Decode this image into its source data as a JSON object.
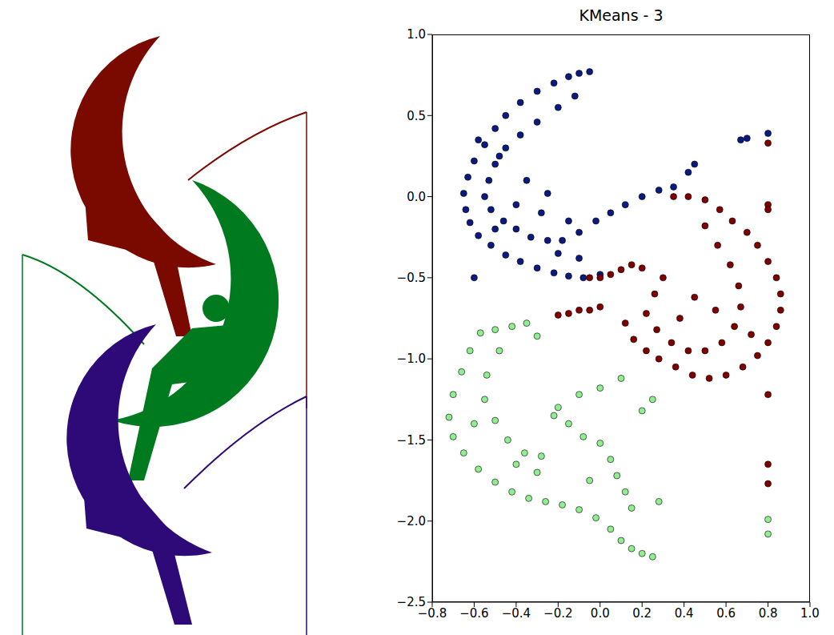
{
  "chart_data": {
    "type": "scatter",
    "title": "KMeans - 3",
    "xlim": [
      -0.8,
      1.0
    ],
    "xticks": [
      {
        "value": -0.8,
        "label": "−0.8"
      },
      {
        "value": -0.6,
        "label": "−0.6"
      },
      {
        "value": -0.4,
        "label": "−0.4"
      },
      {
        "value": -0.2,
        "label": "−0.2"
      },
      {
        "value": 0.0,
        "label": "0.0"
      },
      {
        "value": 0.2,
        "label": "0.2"
      },
      {
        "value": 0.4,
        "label": "0.4"
      },
      {
        "value": 0.6,
        "label": "0.6"
      },
      {
        "value": 0.8,
        "label": "0.8"
      },
      {
        "value": 1.0,
        "label": "1.0"
      }
    ],
    "ylim": [
      -2.5,
      1.0
    ],
    "yticks": [
      {
        "value": -2.5,
        "label": "−2.5"
      },
      {
        "value": -2.0,
        "label": "−2.0"
      },
      {
        "value": -1.5,
        "label": "−1.5"
      },
      {
        "value": -1.0,
        "label": "−1.0"
      },
      {
        "value": -0.5,
        "label": "−0.5"
      },
      {
        "value": 0.0,
        "label": "0.0"
      },
      {
        "value": 0.5,
        "label": "0.5"
      },
      {
        "value": 1.0,
        "label": "1.0"
      }
    ],
    "grid": false,
    "marker": "circle",
    "series": [
      {
        "color": "#0a1a80",
        "x": [
          -0.05,
          -0.1,
          -0.15,
          -0.22,
          -0.3,
          -0.38,
          -0.45,
          -0.5,
          -0.55,
          -0.6,
          -0.63,
          -0.65,
          -0.64,
          -0.62,
          -0.58,
          -0.52,
          -0.45,
          -0.38,
          -0.3,
          -0.22,
          -0.15,
          -0.08,
          0.0,
          -0.12,
          -0.2,
          -0.3,
          -0.38,
          -0.45,
          -0.5,
          -0.53,
          -0.55,
          -0.52,
          -0.46,
          -0.4,
          -0.33,
          -0.25,
          -0.18,
          -0.1,
          -0.02,
          0.05,
          0.12,
          0.2,
          0.28,
          0.35,
          0.42,
          0.45,
          0.67,
          0.7,
          0.8,
          -0.6,
          -0.35,
          -0.25,
          -0.4,
          -0.5,
          -0.2,
          -0.1,
          -0.58,
          -0.48,
          -0.28,
          -0.15
        ],
        "values": [
          0.77,
          0.76,
          0.74,
          0.7,
          0.65,
          0.58,
          0.5,
          0.42,
          0.32,
          0.22,
          0.12,
          0.02,
          -0.08,
          -0.16,
          -0.24,
          -0.3,
          -0.36,
          -0.4,
          -0.44,
          -0.47,
          -0.49,
          -0.5,
          -0.48,
          0.62,
          0.55,
          0.46,
          0.38,
          0.3,
          0.2,
          0.1,
          0.0,
          -0.08,
          -0.15,
          -0.2,
          -0.25,
          -0.27,
          -0.27,
          -0.22,
          -0.15,
          -0.1,
          -0.05,
          0.0,
          0.04,
          0.06,
          0.15,
          0.2,
          0.35,
          0.36,
          0.39,
          -0.5,
          0.1,
          0.02,
          -0.05,
          -0.2,
          -0.35,
          -0.38,
          0.35,
          0.25,
          -0.1,
          -0.15
        ]
      },
      {
        "color": "#800000",
        "x": [
          0.35,
          0.42,
          0.5,
          0.57,
          0.63,
          0.7,
          0.75,
          0.8,
          0.84,
          0.86,
          0.86,
          0.84,
          0.8,
          0.75,
          0.68,
          0.6,
          0.52,
          0.44,
          0.36,
          0.28,
          0.22,
          0.16,
          0.12,
          0.5,
          0.56,
          0.62,
          0.66,
          0.67,
          0.64,
          0.58,
          0.5,
          0.42,
          0.34,
          0.27,
          0.22,
          0.26,
          0.3,
          0.0,
          0.05,
          0.1,
          0.15,
          0.2,
          -0.05,
          -0.2,
          -0.15,
          -0.1,
          -0.05,
          0.0,
          0.8,
          0.8,
          0.8,
          0.8,
          0.8,
          0.8,
          0.45,
          0.72,
          0.55,
          0.38
        ],
        "values": [
          0.0,
          0.0,
          -0.02,
          -0.08,
          -0.15,
          -0.22,
          -0.3,
          -0.4,
          -0.5,
          -0.6,
          -0.7,
          -0.8,
          -0.9,
          -0.98,
          -1.05,
          -1.1,
          -1.12,
          -1.1,
          -1.05,
          -1.0,
          -0.95,
          -0.88,
          -0.78,
          -0.18,
          -0.3,
          -0.42,
          -0.55,
          -0.68,
          -0.8,
          -0.9,
          -0.95,
          -0.95,
          -0.9,
          -0.82,
          -0.72,
          -0.6,
          -0.5,
          -0.5,
          -0.48,
          -0.45,
          -0.42,
          -0.44,
          -0.5,
          -0.73,
          -0.72,
          -0.7,
          -0.7,
          -0.68,
          0.33,
          -0.05,
          -0.08,
          -1.22,
          -1.65,
          -1.77,
          -0.62,
          -0.85,
          -0.7,
          -0.75
        ]
      },
      {
        "color": "#90ee90",
        "x": [
          -0.57,
          -0.5,
          -0.42,
          -0.35,
          -0.3,
          -0.62,
          -0.66,
          -0.7,
          -0.72,
          -0.7,
          -0.65,
          -0.58,
          -0.5,
          -0.42,
          -0.34,
          -0.26,
          -0.18,
          -0.1,
          -0.02,
          0.05,
          0.1,
          0.15,
          0.2,
          0.25,
          -0.48,
          -0.54,
          -0.55,
          -0.5,
          -0.44,
          -0.36,
          -0.28,
          -0.22,
          -0.15,
          -0.08,
          0.0,
          0.05,
          0.08,
          0.12,
          0.15,
          -0.1,
          0.0,
          0.1,
          -0.2,
          0.2,
          0.25,
          0.28,
          0.8,
          0.8,
          -0.3,
          -0.4,
          -0.6,
          -0.05
        ],
        "values": [
          -0.84,
          -0.82,
          -0.8,
          -0.78,
          -0.86,
          -0.95,
          -1.08,
          -1.22,
          -1.36,
          -1.48,
          -1.58,
          -1.68,
          -1.76,
          -1.82,
          -1.86,
          -1.88,
          -1.9,
          -1.93,
          -1.98,
          -2.05,
          -2.12,
          -2.17,
          -2.2,
          -2.22,
          -0.95,
          -1.1,
          -1.25,
          -1.38,
          -1.5,
          -1.58,
          -1.6,
          -1.35,
          -1.4,
          -1.48,
          -1.52,
          -1.62,
          -1.72,
          -1.82,
          -1.92,
          -1.22,
          -1.18,
          -1.12,
          -1.3,
          -1.32,
          -1.25,
          -1.88,
          -1.99,
          -2.08,
          -1.7,
          -1.65,
          -1.4,
          -1.75
        ]
      }
    ]
  }
}
